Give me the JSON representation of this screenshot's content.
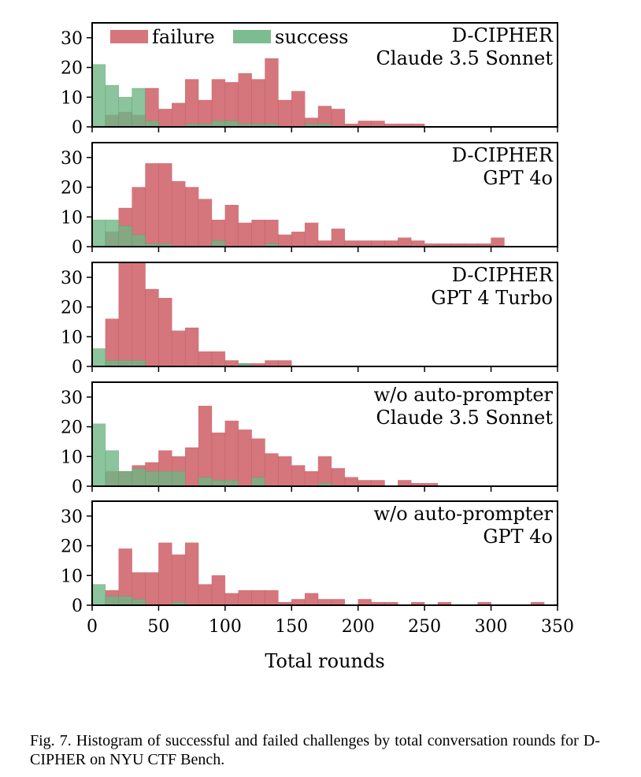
{
  "caption": "Fig. 7.  Histogram of successful and failed challenges by total conversation rounds for D-CIPHER on NYU CTF Bench.",
  "colors": {
    "failure": "#d0676e",
    "success": "#6fb584",
    "failure_stroke": "#b9525a",
    "success_stroke": "#4f9c68"
  },
  "chart_data": {
    "type": "bar",
    "xlabel": "Total rounds",
    "xlim": [
      0,
      350
    ],
    "xticks": [
      0,
      50,
      100,
      150,
      200,
      250,
      300,
      350
    ],
    "ylim": [
      0,
      35
    ],
    "yticks": [
      0,
      10,
      20,
      30
    ],
    "grid": false,
    "legend": {
      "placement": "top-left",
      "entries": [
        "failure",
        "success"
      ]
    },
    "panels": [
      {
        "title_lines": [
          "D-CIPHER",
          "Claude 3.5 Sonnet"
        ],
        "series": [
          {
            "name": "failure",
            "bins": [
              [
                10,
                20,
                4
              ],
              [
                20,
                30,
                5
              ],
              [
                30,
                40,
                4
              ],
              [
                40,
                50,
                13
              ],
              [
                50,
                60,
                6
              ],
              [
                60,
                70,
                8
              ],
              [
                70,
                80,
                16
              ],
              [
                80,
                90,
                9
              ],
              [
                90,
                100,
                16
              ],
              [
                100,
                110,
                15
              ],
              [
                110,
                120,
                18
              ],
              [
                120,
                130,
                16
              ],
              [
                130,
                140,
                23
              ],
              [
                140,
                150,
                9
              ],
              [
                150,
                160,
                12
              ],
              [
                160,
                170,
                3
              ],
              [
                170,
                180,
                7
              ],
              [
                180,
                190,
                6
              ],
              [
                190,
                200,
                1
              ],
              [
                200,
                210,
                2
              ],
              [
                210,
                220,
                2
              ],
              [
                220,
                230,
                1
              ],
              [
                230,
                240,
                1
              ],
              [
                240,
                250,
                1
              ]
            ]
          },
          {
            "name": "success",
            "bins": [
              [
                0,
                10,
                21
              ],
              [
                10,
                20,
                14
              ],
              [
                20,
                30,
                10
              ],
              [
                30,
                40,
                13
              ],
              [
                40,
                50,
                2
              ],
              [
                70,
                80,
                1
              ],
              [
                80,
                90,
                1
              ],
              [
                90,
                100,
                2
              ],
              [
                100,
                110,
                2
              ],
              [
                110,
                120,
                1
              ],
              [
                120,
                130,
                1
              ],
              [
                130,
                140,
                1
              ],
              [
                160,
                170,
                1
              ],
              [
                170,
                180,
                1
              ]
            ]
          }
        ]
      },
      {
        "title_lines": [
          "D-CIPHER",
          "GPT 4o"
        ],
        "series": [
          {
            "name": "failure",
            "bins": [
              [
                10,
                20,
                5
              ],
              [
                20,
                30,
                13
              ],
              [
                30,
                40,
                20
              ],
              [
                40,
                50,
                28
              ],
              [
                50,
                60,
                28
              ],
              [
                60,
                70,
                22
              ],
              [
                70,
                80,
                20
              ],
              [
                80,
                90,
                16
              ],
              [
                90,
                100,
                9
              ],
              [
                100,
                110,
                14
              ],
              [
                110,
                120,
                8
              ],
              [
                120,
                130,
                9
              ],
              [
                130,
                140,
                9
              ],
              [
                140,
                150,
                4
              ],
              [
                150,
                160,
                5
              ],
              [
                160,
                170,
                8
              ],
              [
                170,
                180,
                2
              ],
              [
                180,
                190,
                6
              ],
              [
                190,
                200,
                2
              ],
              [
                200,
                210,
                2
              ],
              [
                210,
                220,
                2
              ],
              [
                220,
                230,
                2
              ],
              [
                230,
                240,
                3
              ],
              [
                240,
                250,
                2
              ],
              [
                250,
                260,
                1
              ],
              [
                260,
                270,
                1
              ],
              [
                270,
                280,
                1
              ],
              [
                280,
                290,
                1
              ],
              [
                290,
                300,
                1
              ],
              [
                300,
                310,
                3
              ]
            ]
          },
          {
            "name": "success",
            "bins": [
              [
                0,
                10,
                9
              ],
              [
                10,
                20,
                9
              ],
              [
                20,
                30,
                7
              ],
              [
                30,
                40,
                4
              ],
              [
                40,
                50,
                1
              ],
              [
                50,
                60,
                1
              ],
              [
                90,
                100,
                2
              ],
              [
                130,
                140,
                1
              ]
            ]
          }
        ]
      },
      {
        "title_lines": [
          "D-CIPHER",
          "GPT 4 Turbo"
        ],
        "series": [
          {
            "name": "failure",
            "bins": [
              [
                10,
                20,
                16
              ],
              [
                20,
                30,
                35
              ],
              [
                30,
                40,
                35
              ],
              [
                40,
                50,
                26
              ],
              [
                50,
                60,
                23
              ],
              [
                60,
                70,
                12
              ],
              [
                70,
                80,
                13
              ],
              [
                80,
                90,
                5
              ],
              [
                90,
                100,
                5
              ],
              [
                100,
                110,
                2
              ],
              [
                110,
                120,
                1
              ],
              [
                120,
                130,
                1
              ],
              [
                130,
                140,
                2
              ],
              [
                140,
                150,
                2
              ]
            ]
          },
          {
            "name": "success",
            "bins": [
              [
                0,
                10,
                6
              ],
              [
                10,
                20,
                2
              ],
              [
                20,
                30,
                2
              ],
              [
                30,
                40,
                2
              ],
              [
                110,
                120,
                1
              ]
            ]
          }
        ]
      },
      {
        "title_lines": [
          "w/o auto-prompter",
          "Claude 3.5 Sonnet"
        ],
        "series": [
          {
            "name": "failure",
            "bins": [
              [
                10,
                20,
                5
              ],
              [
                20,
                30,
                5
              ],
              [
                30,
                40,
                7
              ],
              [
                40,
                50,
                8
              ],
              [
                50,
                60,
                12
              ],
              [
                60,
                70,
                10
              ],
              [
                70,
                80,
                13
              ],
              [
                80,
                90,
                27
              ],
              [
                90,
                100,
                18
              ],
              [
                100,
                110,
                22
              ],
              [
                110,
                120,
                19
              ],
              [
                120,
                130,
                16
              ],
              [
                130,
                140,
                11
              ],
              [
                140,
                150,
                10
              ],
              [
                150,
                160,
                7
              ],
              [
                160,
                170,
                5
              ],
              [
                170,
                180,
                10
              ],
              [
                180,
                190,
                6
              ],
              [
                190,
                200,
                3
              ],
              [
                200,
                210,
                2
              ],
              [
                210,
                220,
                2
              ],
              [
                230,
                240,
                2
              ],
              [
                240,
                250,
                1
              ],
              [
                250,
                260,
                1
              ]
            ]
          },
          {
            "name": "success",
            "bins": [
              [
                0,
                10,
                21
              ],
              [
                10,
                20,
                12
              ],
              [
                20,
                30,
                5
              ],
              [
                30,
                40,
                6
              ],
              [
                40,
                50,
                5
              ],
              [
                50,
                60,
                5
              ],
              [
                60,
                70,
                5
              ],
              [
                80,
                90,
                3
              ],
              [
                90,
                100,
                2
              ],
              [
                100,
                110,
                2
              ],
              [
                120,
                130,
                3
              ],
              [
                170,
                180,
                1
              ]
            ]
          }
        ]
      },
      {
        "title_lines": [
          "w/o auto-prompter",
          "GPT 4o"
        ],
        "series": [
          {
            "name": "failure",
            "bins": [
              [
                10,
                20,
                5
              ],
              [
                20,
                30,
                19
              ],
              [
                30,
                40,
                11
              ],
              [
                40,
                50,
                11
              ],
              [
                50,
                60,
                21
              ],
              [
                60,
                70,
                17
              ],
              [
                70,
                80,
                21
              ],
              [
                80,
                90,
                7
              ],
              [
                90,
                100,
                10
              ],
              [
                100,
                110,
                4
              ],
              [
                110,
                120,
                5
              ],
              [
                120,
                130,
                5
              ],
              [
                130,
                140,
                5
              ],
              [
                140,
                150,
                1
              ],
              [
                150,
                160,
                2
              ],
              [
                160,
                170,
                4
              ],
              [
                170,
                180,
                2
              ],
              [
                180,
                190,
                2
              ],
              [
                200,
                210,
                2
              ],
              [
                210,
                220,
                1
              ],
              [
                220,
                230,
                1
              ],
              [
                240,
                250,
                1
              ],
              [
                260,
                270,
                1
              ],
              [
                290,
                300,
                1
              ],
              [
                330,
                340,
                1
              ]
            ]
          },
          {
            "name": "success",
            "bins": [
              [
                0,
                10,
                7
              ],
              [
                10,
                20,
                3
              ],
              [
                20,
                30,
                3
              ],
              [
                30,
                40,
                2
              ],
              [
                60,
                70,
                1
              ]
            ]
          }
        ]
      }
    ]
  }
}
